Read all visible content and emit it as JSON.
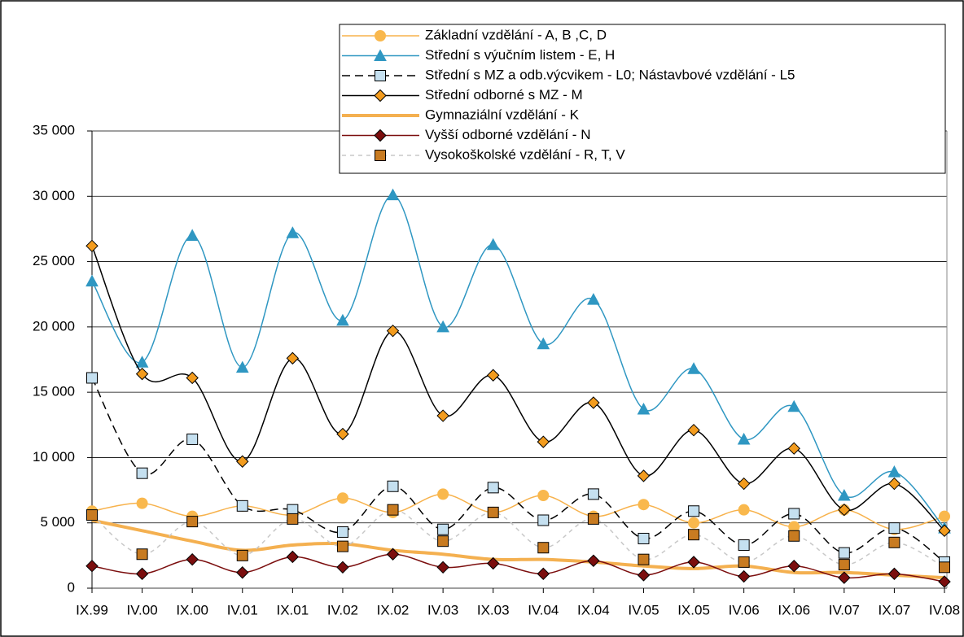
{
  "chart_data": {
    "type": "line",
    "categories": [
      "IX.99",
      "IV.00",
      "IX.00",
      "IV.01",
      "IX.01",
      "IV.02",
      "IX.02",
      "IV.03",
      "IX.03",
      "IV.04",
      "IX.04",
      "IV.05",
      "IX.05",
      "IV.06",
      "IX.06",
      "IV.07",
      "IX.07",
      "IV.08"
    ],
    "ylim": [
      0,
      35000
    ],
    "yticks": [
      0,
      {
        "value": 5000,
        "label": "5 000"
      },
      {
        "value": 10000,
        "label": "10 000"
      },
      {
        "value": 15000,
        "label": "15 000"
      },
      {
        "value": 20000,
        "label": "20 000"
      },
      {
        "value": 25000,
        "label": "25 000"
      },
      {
        "value": 30000,
        "label": "30 000"
      },
      {
        "value": 35000,
        "label": "35 000"
      }
    ],
    "grid": true,
    "legend": "top-right",
    "series": [
      {
        "name": "Základní vzdělání - A, B ,C, D",
        "color": "#f7b24c",
        "marker": "circle",
        "marker_fill": "#f9b84d",
        "values": [
          5900,
          6500,
          5500,
          6300,
          5600,
          6900,
          5800,
          7200,
          5800,
          7100,
          5500,
          6400,
          5000,
          6000,
          4700,
          6000,
          4500,
          5500
        ]
      },
      {
        "name": "Střední s výučním listem - E, H",
        "color": "#2f97c2",
        "marker": "triangle",
        "marker_fill": "#2f97c2",
        "values": [
          23500,
          17300,
          27000,
          16900,
          27200,
          20500,
          30100,
          20000,
          26300,
          18700,
          22100,
          13700,
          16800,
          11400,
          13900,
          7100,
          8900,
          4600
        ]
      },
      {
        "name": "Střední s MZ a odb.výcvikem - L0; Nástavbové vzdělání - L5",
        "color": "#000000",
        "dash": "10 6",
        "marker": "square",
        "marker_fill": "#c5e0f0",
        "values": [
          16100,
          8800,
          11400,
          6300,
          6000,
          4300,
          7800,
          4500,
          7700,
          5200,
          7200,
          3800,
          5900,
          3300,
          5700,
          2700,
          4600,
          2000
        ]
      },
      {
        "name": "Střední odborné s MZ - M",
        "color": "#000000",
        "marker": "diamond",
        "marker_fill": "#f39c1e",
        "values": [
          26200,
          16400,
          16100,
          9700,
          17600,
          11800,
          19700,
          13200,
          16300,
          11200,
          14200,
          8600,
          12100,
          8000,
          10700,
          6000,
          8000,
          4400
        ]
      },
      {
        "name": "Gymnaziální vzdělání - K",
        "color": "#f4b050",
        "line_width": 4,
        "marker": "none",
        "values": [
          5200,
          4400,
          3600,
          2900,
          3300,
          3400,
          2900,
          2600,
          2200,
          2200,
          2000,
          1700,
          1500,
          1700,
          1200,
          1200,
          1000,
          800
        ]
      },
      {
        "name": "Vyšší odborné vzdělání - N",
        "color": "#7b0e0e",
        "marker": "diamond",
        "marker_fill": "#7b0e0e",
        "values": [
          1700,
          1100,
          2200,
          1200,
          2400,
          1600,
          2600,
          1600,
          1900,
          1100,
          2100,
          1000,
          2000,
          900,
          1700,
          800,
          1100,
          500
        ]
      },
      {
        "name": "Vysokoškolské vzdělání - R, T, V",
        "color": "#c8c8c8",
        "dash": "5 5",
        "marker": "square",
        "marker_fill": "#c87b21",
        "values": [
          5600,
          2600,
          5100,
          2500,
          5300,
          3200,
          6000,
          3600,
          5800,
          3100,
          5300,
          2200,
          4100,
          2000,
          4000,
          1800,
          3500,
          1600
        ]
      }
    ]
  }
}
